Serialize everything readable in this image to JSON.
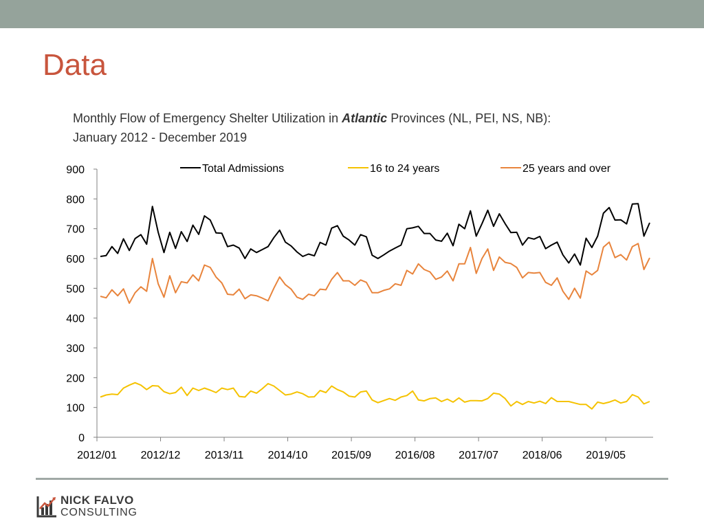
{
  "slide": {
    "title": "Data",
    "chart_title_prefix": "Monthly Flow of Emergency Shelter Utilization in ",
    "chart_title_emphasis": "Atlantic",
    "chart_title_suffix": " Provinces (NL, PEI, NS, NB):",
    "chart_title_line2": "January 2012 - December 2019"
  },
  "logo": {
    "name": "NICK FALVO",
    "sub": "CONSULTING",
    "colors": {
      "dark": "#3a3a3a",
      "red": "#c8553d"
    }
  },
  "colors": {
    "band": "#95a39b",
    "title": "#c8553d",
    "total": "#000000",
    "youth": "#f5c200",
    "adult": "#e8843c"
  },
  "chart_data": {
    "type": "line",
    "title": "Monthly Flow of Emergency Shelter Utilization in Atlantic Provinces (NL, PEI, NS, NB): January 2012 - December 2019",
    "xlabel": "",
    "ylabel": "",
    "ylim": [
      0,
      900
    ],
    "yticks": [
      0,
      100,
      200,
      300,
      400,
      500,
      600,
      700,
      800,
      900
    ],
    "x_start": "2012/01",
    "x_end": "2019/12",
    "x_tick_labels": [
      "2012/01",
      "2012/12",
      "2013/11",
      "2014/10",
      "2015/09",
      "2016/08",
      "2017/07",
      "2018/06",
      "2019/05"
    ],
    "x_tick_step_months": 11,
    "grid": false,
    "legend_position": "top",
    "series": [
      {
        "name": "Total Admissions",
        "color": "#000000",
        "values": [
          607,
          610,
          640,
          617,
          666,
          627,
          667,
          680,
          648,
          775,
          688,
          620,
          688,
          634,
          690,
          657,
          712,
          681,
          743,
          729,
          686,
          685,
          640,
          645,
          635,
          600,
          632,
          620,
          630,
          640,
          670,
          695,
          655,
          642,
          622,
          607,
          615,
          609,
          654,
          645,
          702,
          710,
          675,
          662,
          645,
          680,
          673,
          611,
          600,
          612,
          625,
          635,
          645,
          700,
          703,
          708,
          684,
          684,
          662,
          658,
          685,
          643,
          715,
          700,
          760,
          675,
          717,
          762,
          708,
          750,
          717,
          687,
          688,
          645,
          670,
          665,
          674,
          633,
          645,
          655,
          612,
          585,
          615,
          578,
          668,
          637,
          675,
          752,
          771,
          729,
          730,
          716,
          783,
          784,
          675,
          720
        ]
      },
      {
        "name": "16 to 24 years",
        "color": "#f5c200",
        "values": [
          135,
          142,
          145,
          143,
          165,
          175,
          183,
          175,
          160,
          173,
          172,
          153,
          146,
          150,
          168,
          140,
          165,
          157,
          165,
          158,
          150,
          165,
          160,
          165,
          137,
          135,
          155,
          148,
          163,
          180,
          172,
          157,
          142,
          145,
          152,
          146,
          135,
          136,
          157,
          150,
          172,
          160,
          152,
          138,
          135,
          152,
          155,
          125,
          116,
          123,
          130,
          124,
          135,
          140,
          155,
          125,
          122,
          130,
          132,
          120,
          128,
          118,
          132,
          118,
          123,
          123,
          122,
          130,
          148,
          145,
          130,
          105,
          120,
          110,
          120,
          115,
          121,
          113,
          133,
          120,
          120,
          120,
          115,
          110,
          110,
          95,
          118,
          113,
          118,
          125,
          115,
          120,
          143,
          135,
          112,
          120
        ]
      },
      {
        "name": "25 years and over",
        "color": "#e8843c",
        "values": [
          473,
          468,
          495,
          475,
          498,
          450,
          485,
          505,
          490,
          600,
          515,
          470,
          542,
          485,
          522,
          518,
          545,
          525,
          578,
          570,
          538,
          518,
          480,
          478,
          497,
          465,
          478,
          475,
          467,
          458,
          500,
          538,
          512,
          497,
          470,
          463,
          480,
          475,
          497,
          495,
          530,
          553,
          525,
          525,
          510,
          528,
          520,
          485,
          485,
          493,
          498,
          515,
          510,
          560,
          548,
          582,
          563,
          555,
          530,
          538,
          558,
          525,
          582,
          582,
          637,
          550,
          600,
          632,
          560,
          605,
          587,
          583,
          570,
          535,
          553,
          551,
          553,
          520,
          510,
          535,
          490,
          463,
          500,
          467,
          558,
          545,
          560,
          638,
          655,
          603,
          613,
          595,
          640,
          650,
          563,
          602
        ]
      }
    ]
  }
}
